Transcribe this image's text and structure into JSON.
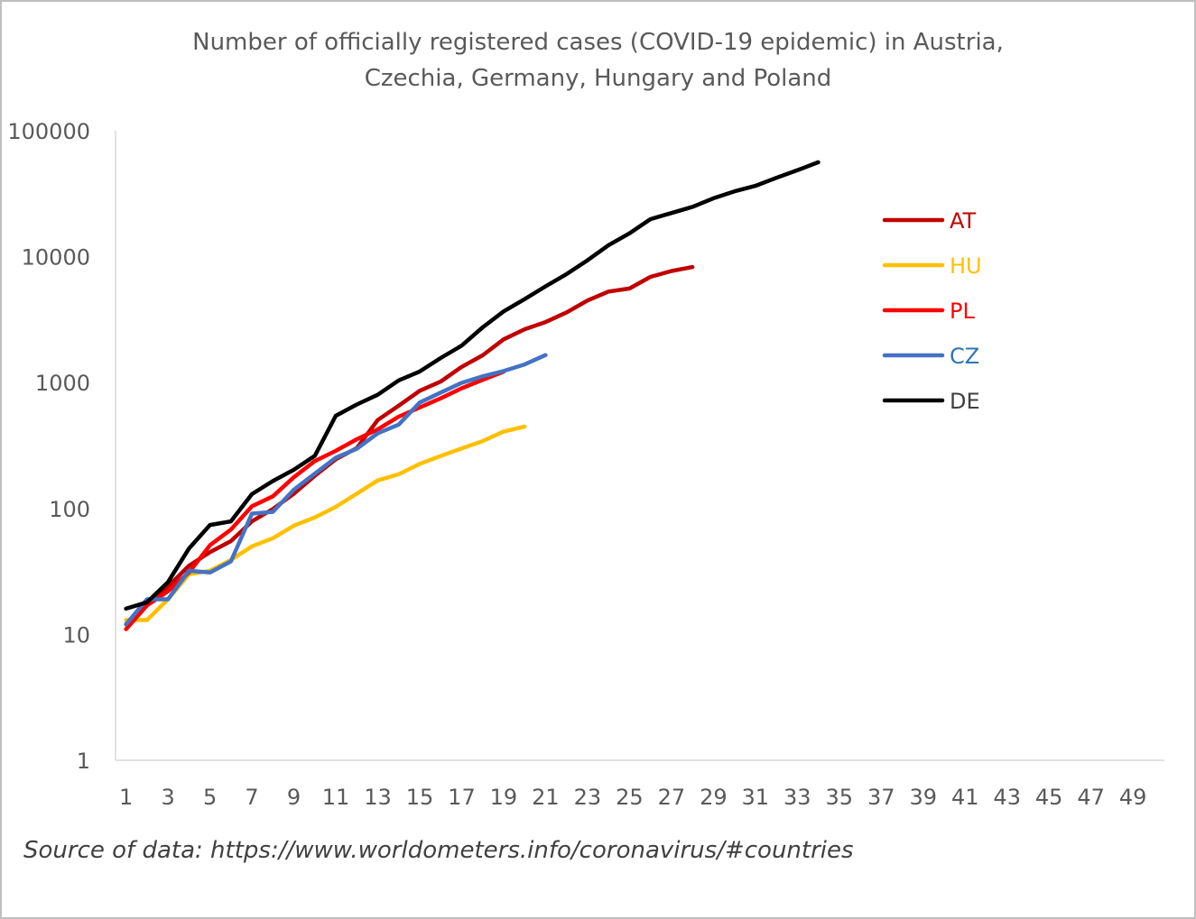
{
  "chart_data": {
    "type": "line",
    "title_lines": [
      "Number of officially registered cases (COVID-19 epidemic) in Austria,",
      "Czechia, Germany, Hungary and Poland"
    ],
    "source_note": "Source of data: https://www.worldometers.info/coronavirus/#countries",
    "y_scale": "log",
    "ylim": [
      1,
      100000
    ],
    "y_ticks": [
      "1",
      "10",
      "100",
      "1000",
      "10000",
      "100000"
    ],
    "xlim": [
      1,
      50
    ],
    "x_ticks": [
      "1",
      "3",
      "5",
      "7",
      "9",
      "11",
      "13",
      "15",
      "17",
      "19",
      "21",
      "23",
      "25",
      "27",
      "29",
      "31",
      "33",
      "35",
      "37",
      "39",
      "41",
      "43",
      "45",
      "47",
      "49"
    ],
    "grid": false,
    "legend_position": "right",
    "series": [
      {
        "name": "AT",
        "color": "#c00000",
        "label_color": "#c00000",
        "values": [
          12,
          18,
          24,
          35,
          45,
          55,
          79,
          99,
          131,
          182,
          246,
          302,
          504,
          655,
          860,
          1018,
          1332,
          1646,
          2203,
          2649,
          3024,
          3611,
          4486,
          5283,
          5588,
          6909,
          7697,
          8271
        ]
      },
      {
        "name": "HU",
        "color": "#ffc000",
        "label_color": "#ffc000",
        "values": [
          13,
          13,
          19,
          30,
          32,
          39,
          50,
          58,
          73,
          85,
          103,
          131,
          167,
          187,
          226,
          261,
          300,
          343,
          408,
          447
        ]
      },
      {
        "name": "PL",
        "color": "#ff0000",
        "label_color": "#ff0000",
        "values": [
          11,
          17,
          22,
          31,
          51,
          68,
          104,
          125,
          177,
          238,
          287,
          355,
          425,
          536,
          634,
          749,
          901,
          1051,
          1221
        ]
      },
      {
        "name": "CZ",
        "color": "#4472c4",
        "label_color": "#2e75b6",
        "values": [
          12,
          19,
          19,
          32,
          31,
          38,
          91,
          94,
          141,
          189,
          253,
          298,
          396,
          464,
          694,
          833,
          995,
          1120,
          1236,
          1394,
          1654
        ]
      },
      {
        "name": "DE",
        "color": "#000000",
        "label_color": "#404040",
        "values": [
          16,
          18,
          26,
          48,
          74,
          79,
          130,
          165,
          203,
          262,
          545,
          670,
          800,
          1040,
          1224,
          1565,
          1966,
          2745,
          3675,
          4599,
          5813,
          7272,
          9367,
          12327,
          15320,
          19848,
          22213,
          24873,
          29056,
          32986,
          36508,
          42288,
          48582,
          56202
        ]
      }
    ]
  }
}
